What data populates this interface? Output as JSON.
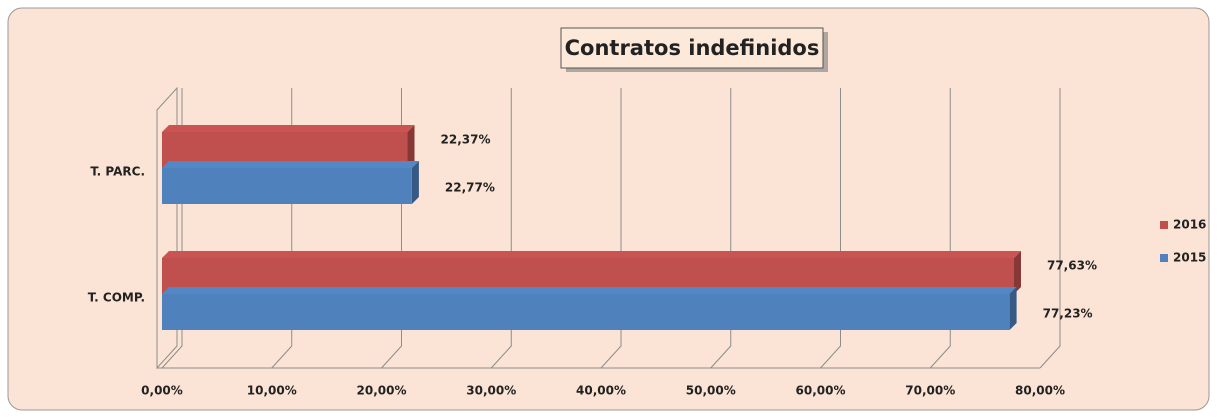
{
  "chart_data": {
    "type": "bar",
    "orientation": "horizontal",
    "title": "Contratos indefinidos",
    "categories": [
      "T. PARC.",
      "T. COMP."
    ],
    "series": [
      {
        "name": "2016",
        "color": "#c0504d",
        "values": [
          22.37,
          77.63
        ],
        "value_labels": [
          "22,37%",
          "77,63%"
        ]
      },
      {
        "name": "2015",
        "color": "#4f81bd",
        "values": [
          22.77,
          77.23
        ],
        "value_labels": [
          "22,77%",
          "77,23%"
        ]
      }
    ],
    "xlim": [
      0,
      80
    ],
    "xticks": [
      {
        "value": 0,
        "label": "0,00%"
      },
      {
        "value": 10,
        "label": "10,00%"
      },
      {
        "value": 20,
        "label": "20,00%"
      },
      {
        "value": 30,
        "label": "30,00%"
      },
      {
        "value": 40,
        "label": "40,00%"
      },
      {
        "value": 50,
        "label": "50,00%"
      },
      {
        "value": 60,
        "label": "60,00%"
      },
      {
        "value": 70,
        "label": "70,00%"
      },
      {
        "value": 80,
        "label": "80,00%"
      }
    ],
    "grid": true,
    "legend": "right"
  }
}
